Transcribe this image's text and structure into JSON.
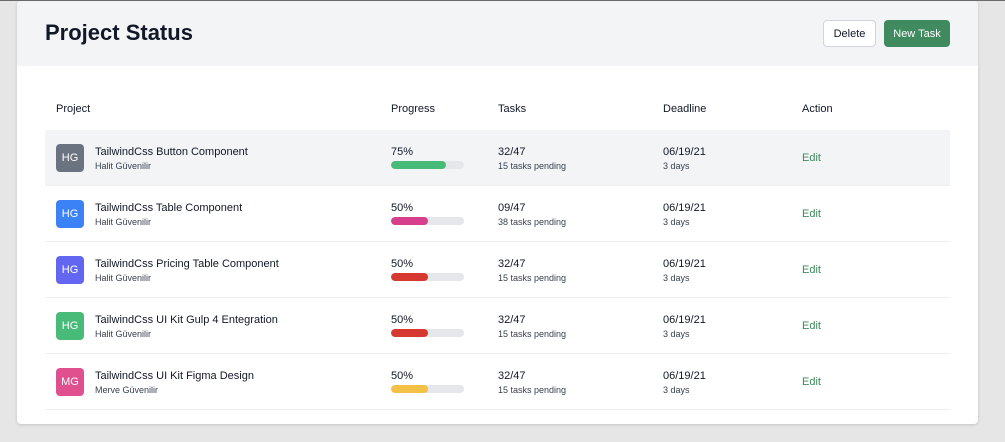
{
  "header": {
    "title": "Project Status",
    "delete_label": "Delete",
    "new_task_label": "New Task"
  },
  "columns": {
    "project": "Project",
    "progress": "Progress",
    "tasks": "Tasks",
    "deadline": "Deadline",
    "action": "Action"
  },
  "rows": [
    {
      "initials": "HG",
      "avatar_color": "#6b7280",
      "name": "TailwindCss Button Component",
      "owner": "Halit Güvenilir",
      "progress_label": "75%",
      "progress_value": 75,
      "bar_color": "#48bb78",
      "tasks": "32/47",
      "pending": "15 tasks pending",
      "date": "06/19/21",
      "relative": "3 days",
      "action": "Edit"
    },
    {
      "initials": "HG",
      "avatar_color": "#3b82f6",
      "name": "TailwindCss Table Component",
      "owner": "Halit Güvenilir",
      "progress_label": "50%",
      "progress_value": 50,
      "bar_color": "#d53f8c",
      "tasks": "09/47",
      "pending": "38 tasks pending",
      "date": "06/19/21",
      "relative": "3 days",
      "action": "Edit"
    },
    {
      "initials": "HG",
      "avatar_color": "#6366f1",
      "name": "TailwindCss Pricing Table Component",
      "owner": "Halit Güvenilir",
      "progress_label": "50%",
      "progress_value": 50,
      "bar_color": "#d6392f",
      "tasks": "32/47",
      "pending": "15 tasks pending",
      "date": "06/19/21",
      "relative": "3 days",
      "action": "Edit"
    },
    {
      "initials": "HG",
      "avatar_color": "#48bb78",
      "name": "TailwindCss UI Kit Gulp 4 Entegration",
      "owner": "Halit Güvenilir",
      "progress_label": "50%",
      "progress_value": 50,
      "bar_color": "#d6392f",
      "tasks": "32/47",
      "pending": "15 tasks pending",
      "date": "06/19/21",
      "relative": "3 days",
      "action": "Edit"
    },
    {
      "initials": "MG",
      "avatar_color": "#e0508f",
      "name": "TailwindCss UI Kit Figma Design",
      "owner": "Merve Güvenilir",
      "progress_label": "50%",
      "progress_value": 50,
      "bar_color": "#f4c046",
      "tasks": "32/47",
      "pending": "15 tasks pending",
      "date": "06/19/21",
      "relative": "3 days",
      "action": "Edit"
    }
  ],
  "colors": {
    "accent": "#3f8a5e",
    "highlight_row": "#f3f4f6"
  }
}
